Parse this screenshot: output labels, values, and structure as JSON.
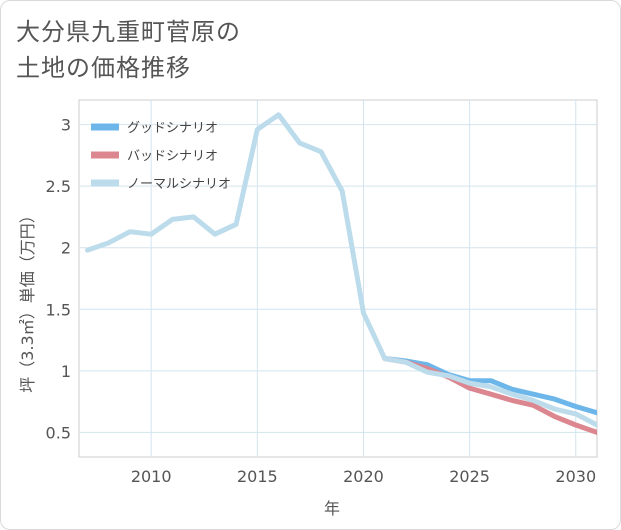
{
  "chart_data": {
    "type": "line",
    "title_line1": "大分県九重町菅原の",
    "title_line2": "土地の価格推移",
    "xlabel": "年",
    "ylabel": "坪（3.3㎡）単価（万円）",
    "xlim": [
      2006.6,
      2031.0
    ],
    "ylim": [
      0.3,
      3.2
    ],
    "x_ticks": [
      2010,
      2015,
      2020,
      2025,
      2030
    ],
    "x_tick_labels": [
      "2010",
      "2015",
      "2020",
      "2025",
      "2030"
    ],
    "y_ticks": [
      0.5,
      1,
      1.5,
      2,
      2.5,
      3
    ],
    "y_tick_labels": [
      "0.5",
      "1",
      "1.5",
      "2",
      "2.5",
      "3"
    ],
    "grid": true,
    "legend_position": "top-left",
    "series": [
      {
        "name": "グッドシナリオ",
        "color": "#6db6ea",
        "x": [
          2021,
          2022,
          2023,
          2024,
          2025,
          2026,
          2027,
          2028,
          2029,
          2030,
          2031
        ],
        "values": [
          1.1,
          1.08,
          1.05,
          0.97,
          0.92,
          0.92,
          0.85,
          0.81,
          0.77,
          0.71,
          0.66
        ]
      },
      {
        "name": "バッドシナリオ",
        "color": "#dc8790",
        "x": [
          2021,
          2022,
          2023,
          2024,
          2025,
          2026,
          2027,
          2028,
          2029,
          2030,
          2031
        ],
        "values": [
          1.1,
          1.07,
          1.02,
          0.95,
          0.86,
          0.81,
          0.76,
          0.72,
          0.63,
          0.56,
          0.5
        ]
      },
      {
        "name": "ノーマルシナリオ",
        "color": "#bcdcec",
        "x": [
          2007,
          2008,
          2009,
          2010,
          2011,
          2012,
          2013,
          2014,
          2015,
          2016,
          2017,
          2018,
          2019,
          2020,
          2021,
          2022,
          2023,
          2024,
          2025,
          2026,
          2027,
          2028,
          2029,
          2030,
          2031
        ],
        "values": [
          1.98,
          2.04,
          2.13,
          2.11,
          2.23,
          2.25,
          2.11,
          2.19,
          2.96,
          3.08,
          2.85,
          2.78,
          2.46,
          1.47,
          1.1,
          1.07,
          0.99,
          0.96,
          0.9,
          0.87,
          0.81,
          0.76,
          0.69,
          0.65,
          0.56
        ]
      }
    ]
  }
}
